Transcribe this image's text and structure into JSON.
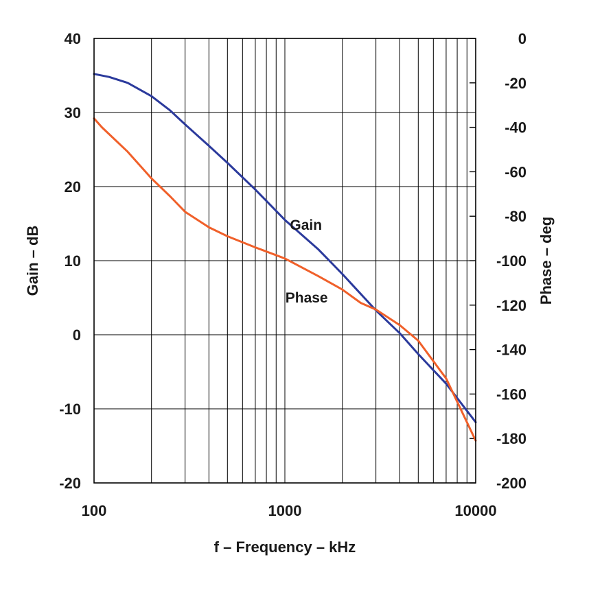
{
  "chart_data": {
    "type": "line",
    "title": "",
    "xlabel": "f – Frequency – kHz",
    "ylabel_left": "Gain – dB",
    "ylabel_right": "Phase – deg",
    "x_scale": "log",
    "xlim": [
      100,
      10000
    ],
    "ylim_left": [
      -20,
      40
    ],
    "ylim_right": [
      -200,
      0
    ],
    "grid": true,
    "x_ticks": [
      "100",
      "1000",
      "10000"
    ],
    "y_left_ticks": [
      "40",
      "30",
      "20",
      "10",
      "0",
      "-10",
      "-20"
    ],
    "y_right_ticks": [
      "0",
      "-20",
      "-40",
      "-60",
      "-80",
      "-100",
      "-120",
      "-140",
      "-160",
      "-180",
      "-200"
    ],
    "colors": {
      "gain": "#2b3a9c",
      "phase": "#f0602a",
      "grid": "#000000"
    },
    "series": [
      {
        "name": "Gain",
        "axis": "left",
        "x": [
          100,
          120,
          150,
          200,
          250,
          300,
          400,
          500,
          700,
          1000,
          1500,
          2000,
          3000,
          4000,
          5000,
          7000,
          10000
        ],
        "y": [
          35.2,
          34.8,
          34.0,
          32.2,
          30.3,
          28.4,
          25.5,
          23.2,
          19.6,
          15.5,
          11.5,
          8.2,
          3.3,
          0.2,
          -2.6,
          -6.6,
          -11.8
        ]
      },
      {
        "name": "Phase",
        "axis": "right",
        "x": [
          100,
          110,
          150,
          200,
          250,
          300,
          400,
          500,
          700,
          1000,
          1500,
          2000,
          2500,
          3000,
          4000,
          5000,
          7000,
          10000
        ],
        "y": [
          -36,
          -40,
          -51,
          -63,
          -71,
          -78,
          -85,
          -89,
          -94,
          -99,
          -107,
          -113,
          -119,
          -122,
          -129,
          -136,
          -153,
          -181
        ]
      }
    ],
    "annotations": [
      {
        "text": "Gain",
        "series": "Gain"
      },
      {
        "text": "Phase",
        "series": "Phase"
      }
    ]
  }
}
